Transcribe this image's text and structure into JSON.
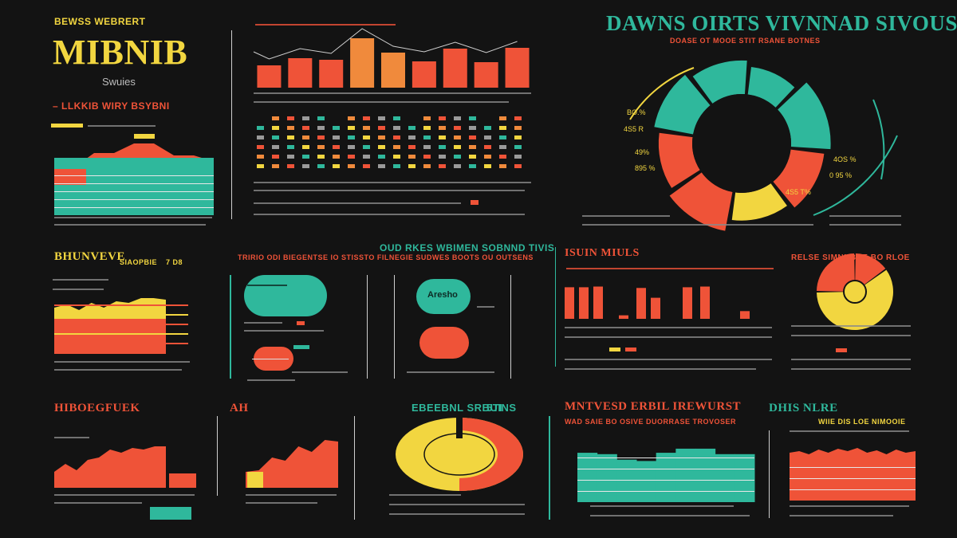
{
  "colors": {
    "teal": "#2fb89c",
    "yellow": "#f2d640",
    "red": "#ef5338",
    "orange": "#f08a3c",
    "background": "#131313"
  },
  "header": {
    "kicker": "BEWSS WEBRERT",
    "title": "MIBNIB",
    "subtitle": "Swuies",
    "tagline": "– LLKKIB WIRY BSYBNI"
  },
  "top_right": {
    "title": "DAWNS OIRTS VIVNNAD SIVOUSS",
    "subtitle": "DOASE OT MOOE STIT RSANE BOTNES",
    "labels": [
      "BO.%",
      "4S5 R",
      "49%",
      "895 %",
      "4OS %",
      "0 95 %",
      "4S5 T%"
    ]
  },
  "mid_center": {
    "title": "OUD RKES WBIMEN SOBNND TIVIS",
    "subtitle": "TRIRIO ODI BIEGENTSE IO STISSTO FILNEGIE SUDWES BOOTS OU OUTSENS",
    "badge": "Aresho"
  },
  "mid_left": {
    "title": "BHUNVEVE",
    "tag": "SIAOPBIE",
    "tag2": "7 D8"
  },
  "mid_right": {
    "title": "ISUIN MIULS",
    "pie_title": "RELSE SIMNNBUE BO RLOE"
  },
  "bottom": {
    "t1": "HIBOEGFUEK",
    "t2": "AH",
    "t3": "EBEEBNL SRBUINS",
    "t3b": "5TI",
    "t4": "MNTVESD ERBIL IREWURST",
    "t4sub": "WAD SAIE BO OSIVE DUORRASE TROVOSER",
    "t5": "DHIS NLRE",
    "t5sub": "WIIE DIS LOE NIMOOIE"
  },
  "chart_data": [
    {
      "id": "top-bar-chart",
      "type": "bar",
      "values": [
        28,
        37,
        35,
        62,
        44,
        33,
        49,
        32,
        50
      ]
    },
    {
      "id": "top-dot-matrix",
      "type": "heatmap",
      "columns": 18
    },
    {
      "id": "big-donut",
      "type": "pie",
      "slices": [
        {
          "value": 12,
          "color": "#2fb89c"
        },
        {
          "value": 12,
          "color": "#2fb89c"
        },
        {
          "value": 11,
          "color": "#2fb89c"
        },
        {
          "value": 14,
          "color": "#2fb89c"
        },
        {
          "value": 13,
          "color": "#ef5338"
        },
        {
          "value": 13,
          "color": "#f2d640"
        },
        {
          "value": 13,
          "color": "#ef5338"
        },
        {
          "value": 12,
          "color": "#ef5338"
        }
      ]
    },
    {
      "id": "top-left-area",
      "type": "area",
      "series": [
        {
          "values": [
            40,
            40,
            52,
            52,
            60,
            60,
            50,
            50,
            45
          ]
        }
      ]
    },
    {
      "id": "mid-left-area",
      "type": "area",
      "values": [
        58,
        62,
        55,
        64,
        58,
        66,
        64,
        70,
        70,
        68
      ]
    },
    {
      "id": "mid-right-bars",
      "type": "bar",
      "values": [
        90,
        90,
        92,
        10,
        88,
        60,
        90,
        92,
        22
      ]
    },
    {
      "id": "small-pie",
      "type": "pie",
      "values": [
        25,
        15,
        60
      ]
    },
    {
      "id": "bottom-area-1",
      "type": "area",
      "values": [
        20,
        30,
        22,
        35,
        38,
        48,
        44,
        50,
        48,
        52,
        52
      ]
    },
    {
      "id": "bottom-area-2",
      "type": "area",
      "values": [
        20,
        22,
        38,
        34,
        52,
        45,
        60,
        58
      ]
    },
    {
      "id": "bottom-donut",
      "type": "pie",
      "values": [
        55,
        45
      ]
    },
    {
      "id": "bottom-steps",
      "type": "area",
      "values": [
        72,
        70,
        62,
        60,
        72,
        78,
        78,
        70,
        70
      ]
    },
    {
      "id": "bottom-right-area",
      "type": "area",
      "values": [
        60,
        62,
        58,
        64,
        60,
        65,
        62,
        66,
        60,
        63,
        58,
        64,
        60,
        62
      ]
    }
  ]
}
